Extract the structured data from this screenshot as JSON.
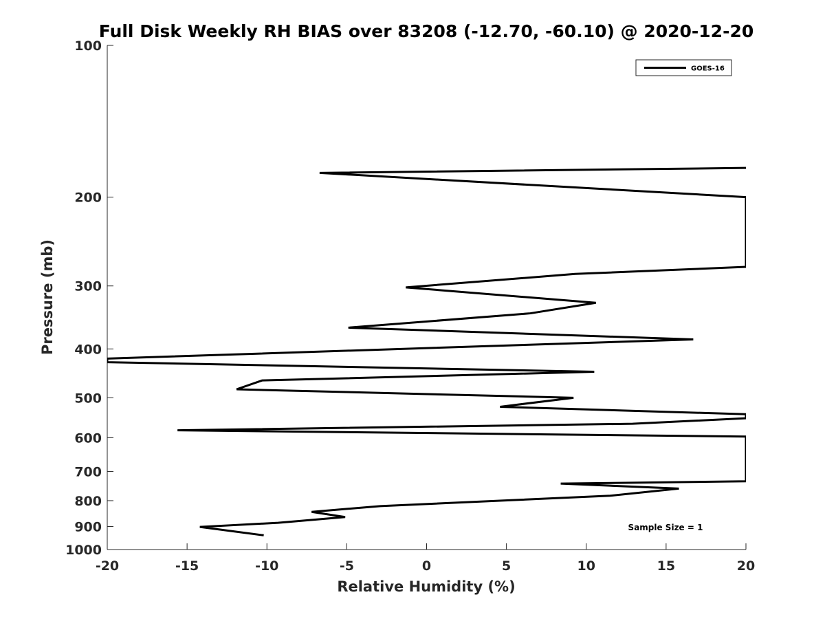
{
  "chart_data": {
    "type": "line",
    "title": "Full Disk Weekly RH BIAS over 83208 (-12.70, -60.10) @ 2020-12-20",
    "xlabel": "Relative Humidity (%)",
    "ylabel": "Pressure (mb)",
    "xlim": [
      -20,
      20
    ],
    "ylim": [
      100,
      1000
    ],
    "yscale": "log",
    "y_reversed": true,
    "grid": false,
    "legend_position": "top-right",
    "x_ticks": [
      -20,
      -15,
      -10,
      -5,
      0,
      5,
      10,
      15,
      20
    ],
    "x_tick_labels": [
      "-20",
      "-15",
      "-10",
      "-5",
      "0",
      "5",
      "10",
      "15",
      "20"
    ],
    "y_ticks": [
      100,
      200,
      300,
      400,
      500,
      600,
      700,
      800,
      900,
      1000
    ],
    "y_tick_labels": [
      "100",
      "200",
      "300",
      "400",
      "500",
      "600",
      "700",
      "800",
      "900",
      "1000"
    ],
    "series": [
      {
        "name": "GOES-16",
        "color": "#000000",
        "points": [
          {
            "x": 20,
            "y": 175
          },
          {
            "x": -6.7,
            "y": 179
          },
          {
            "x": 20,
            "y": 200
          },
          {
            "x": 20,
            "y": 275
          },
          {
            "x": 9.3,
            "y": 284
          },
          {
            "x": -1.3,
            "y": 302
          },
          {
            "x": 10.6,
            "y": 324
          },
          {
            "x": 6.5,
            "y": 340
          },
          {
            "x": -4.9,
            "y": 363
          },
          {
            "x": 16.7,
            "y": 383
          },
          {
            "x": -20,
            "y": 418
          },
          {
            "x": -20,
            "y": 425
          },
          {
            "x": 10.5,
            "y": 444
          },
          {
            "x": -10.3,
            "y": 462
          },
          {
            "x": -11.9,
            "y": 481
          },
          {
            "x": 9.2,
            "y": 500
          },
          {
            "x": 4.6,
            "y": 521
          },
          {
            "x": 20,
            "y": 539
          },
          {
            "x": 20,
            "y": 549
          },
          {
            "x": 12.9,
            "y": 563
          },
          {
            "x": -15.6,
            "y": 580
          },
          {
            "x": 20,
            "y": 597
          },
          {
            "x": 20,
            "y": 732
          },
          {
            "x": 8.4,
            "y": 740
          },
          {
            "x": 15.8,
            "y": 757
          },
          {
            "x": 11.5,
            "y": 782
          },
          {
            "x": -2.9,
            "y": 820
          },
          {
            "x": -7.2,
            "y": 842
          },
          {
            "x": -5.1,
            "y": 862
          },
          {
            "x": -9.3,
            "y": 885
          },
          {
            "x": -14.2,
            "y": 902
          },
          {
            "x": -10.2,
            "y": 937
          }
        ]
      }
    ],
    "annotations": [
      "Sample Size = 1"
    ]
  }
}
